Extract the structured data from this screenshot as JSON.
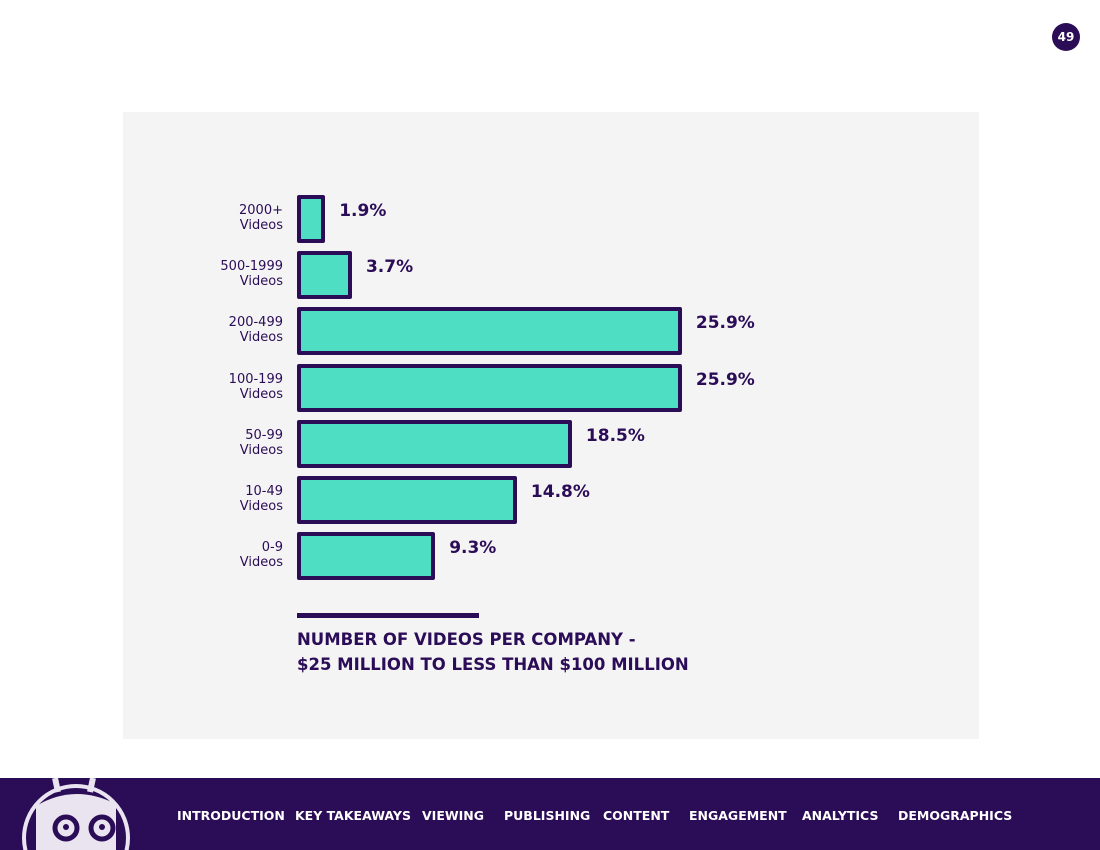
{
  "page_number": "49",
  "chart_data": {
    "type": "bar",
    "orientation": "horizontal",
    "title_lines": [
      "NUMBER OF VIDEOS PER COMPANY -",
      "$25 MILLION TO LESS THAN $100 MILLION"
    ],
    "categories": [
      [
        "2000+",
        "Videos"
      ],
      [
        "500-1999",
        "Videos"
      ],
      [
        "200-499",
        "Videos"
      ],
      [
        "100-199",
        "Videos"
      ],
      [
        "50-99",
        "Videos"
      ],
      [
        "10-49",
        "Videos"
      ],
      [
        "0-9",
        "Videos"
      ]
    ],
    "values": [
      1.9,
      3.7,
      25.9,
      25.9,
      18.5,
      14.8,
      9.3
    ],
    "value_labels": [
      "1.9%",
      "3.7%",
      "25.9%",
      "25.9%",
      "18.5%",
      "14.8%",
      "9.3%"
    ],
    "unit": "%",
    "bar_color": "#4ddec4",
    "outline_color": "#2b0c57"
  },
  "footer": {
    "nav": [
      "INTRODUCTION",
      "KEY TAKEAWAYS",
      "VIEWING",
      "PUBLISHING",
      "CONTENT",
      "ENGAGEMENT",
      "ANALYTICS",
      "DEMOGRAPHICS"
    ]
  }
}
